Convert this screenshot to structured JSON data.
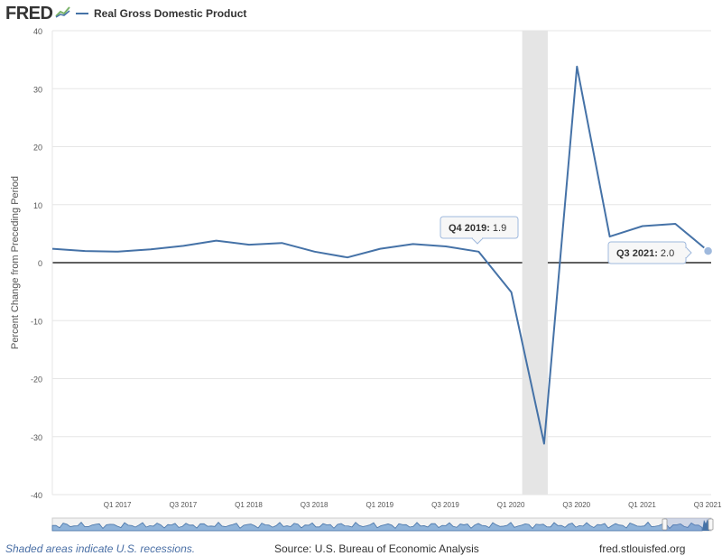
{
  "header": {
    "logo_text": "FRED",
    "logo_icon": "fred-chart-icon",
    "legend_label": "Real Gross Domestic Product",
    "series_color": "#4572a7"
  },
  "chart_data": {
    "type": "line",
    "ylabel": "Percent Change from Preceding Period",
    "xlabel": "",
    "ylim": [
      -40,
      40
    ],
    "yticks": [
      40,
      30,
      20,
      10,
      0,
      -10,
      -20,
      -30,
      -40
    ],
    "grid": true,
    "x": [
      "Q3 2016",
      "Q4 2016",
      "Q1 2017",
      "Q2 2017",
      "Q3 2017",
      "Q4 2017",
      "Q1 2018",
      "Q2 2018",
      "Q3 2018",
      "Q4 2018",
      "Q1 2019",
      "Q2 2019",
      "Q3 2019",
      "Q4 2019",
      "Q1 2020",
      "Q2 2020",
      "Q3 2020",
      "Q4 2020",
      "Q1 2021",
      "Q2 2021",
      "Q3 2021"
    ],
    "series": [
      {
        "name": "Real Gross Domestic Product",
        "values": [
          2.4,
          2.0,
          1.9,
          2.3,
          2.9,
          3.8,
          3.1,
          3.4,
          1.9,
          0.9,
          2.4,
          3.2,
          2.8,
          1.9,
          -5.1,
          -31.2,
          33.8,
          4.5,
          6.3,
          6.7,
          2.0
        ]
      }
    ],
    "xtick_labels": [
      "Q1 2017",
      "Q3 2017",
      "Q1 2018",
      "Q3 2018",
      "Q1 2019",
      "Q3 2019",
      "Q1 2020",
      "Q3 2020",
      "Q1 2021",
      "Q3 2021"
    ],
    "recession": {
      "start": "Q1 2020",
      "end": "Q2 2020",
      "color": "#e5e5e5"
    },
    "tooltips": [
      {
        "label": "Q4 2019:",
        "value": "1.9"
      },
      {
        "label": "Q3 2021:",
        "value": "2.0"
      }
    ]
  },
  "footer": {
    "recession_note": "Shaded areas indicate U.S. recessions.",
    "source": "Source: U.S. Bureau of Economic Analysis",
    "url": "fred.stlouisfed.org"
  }
}
